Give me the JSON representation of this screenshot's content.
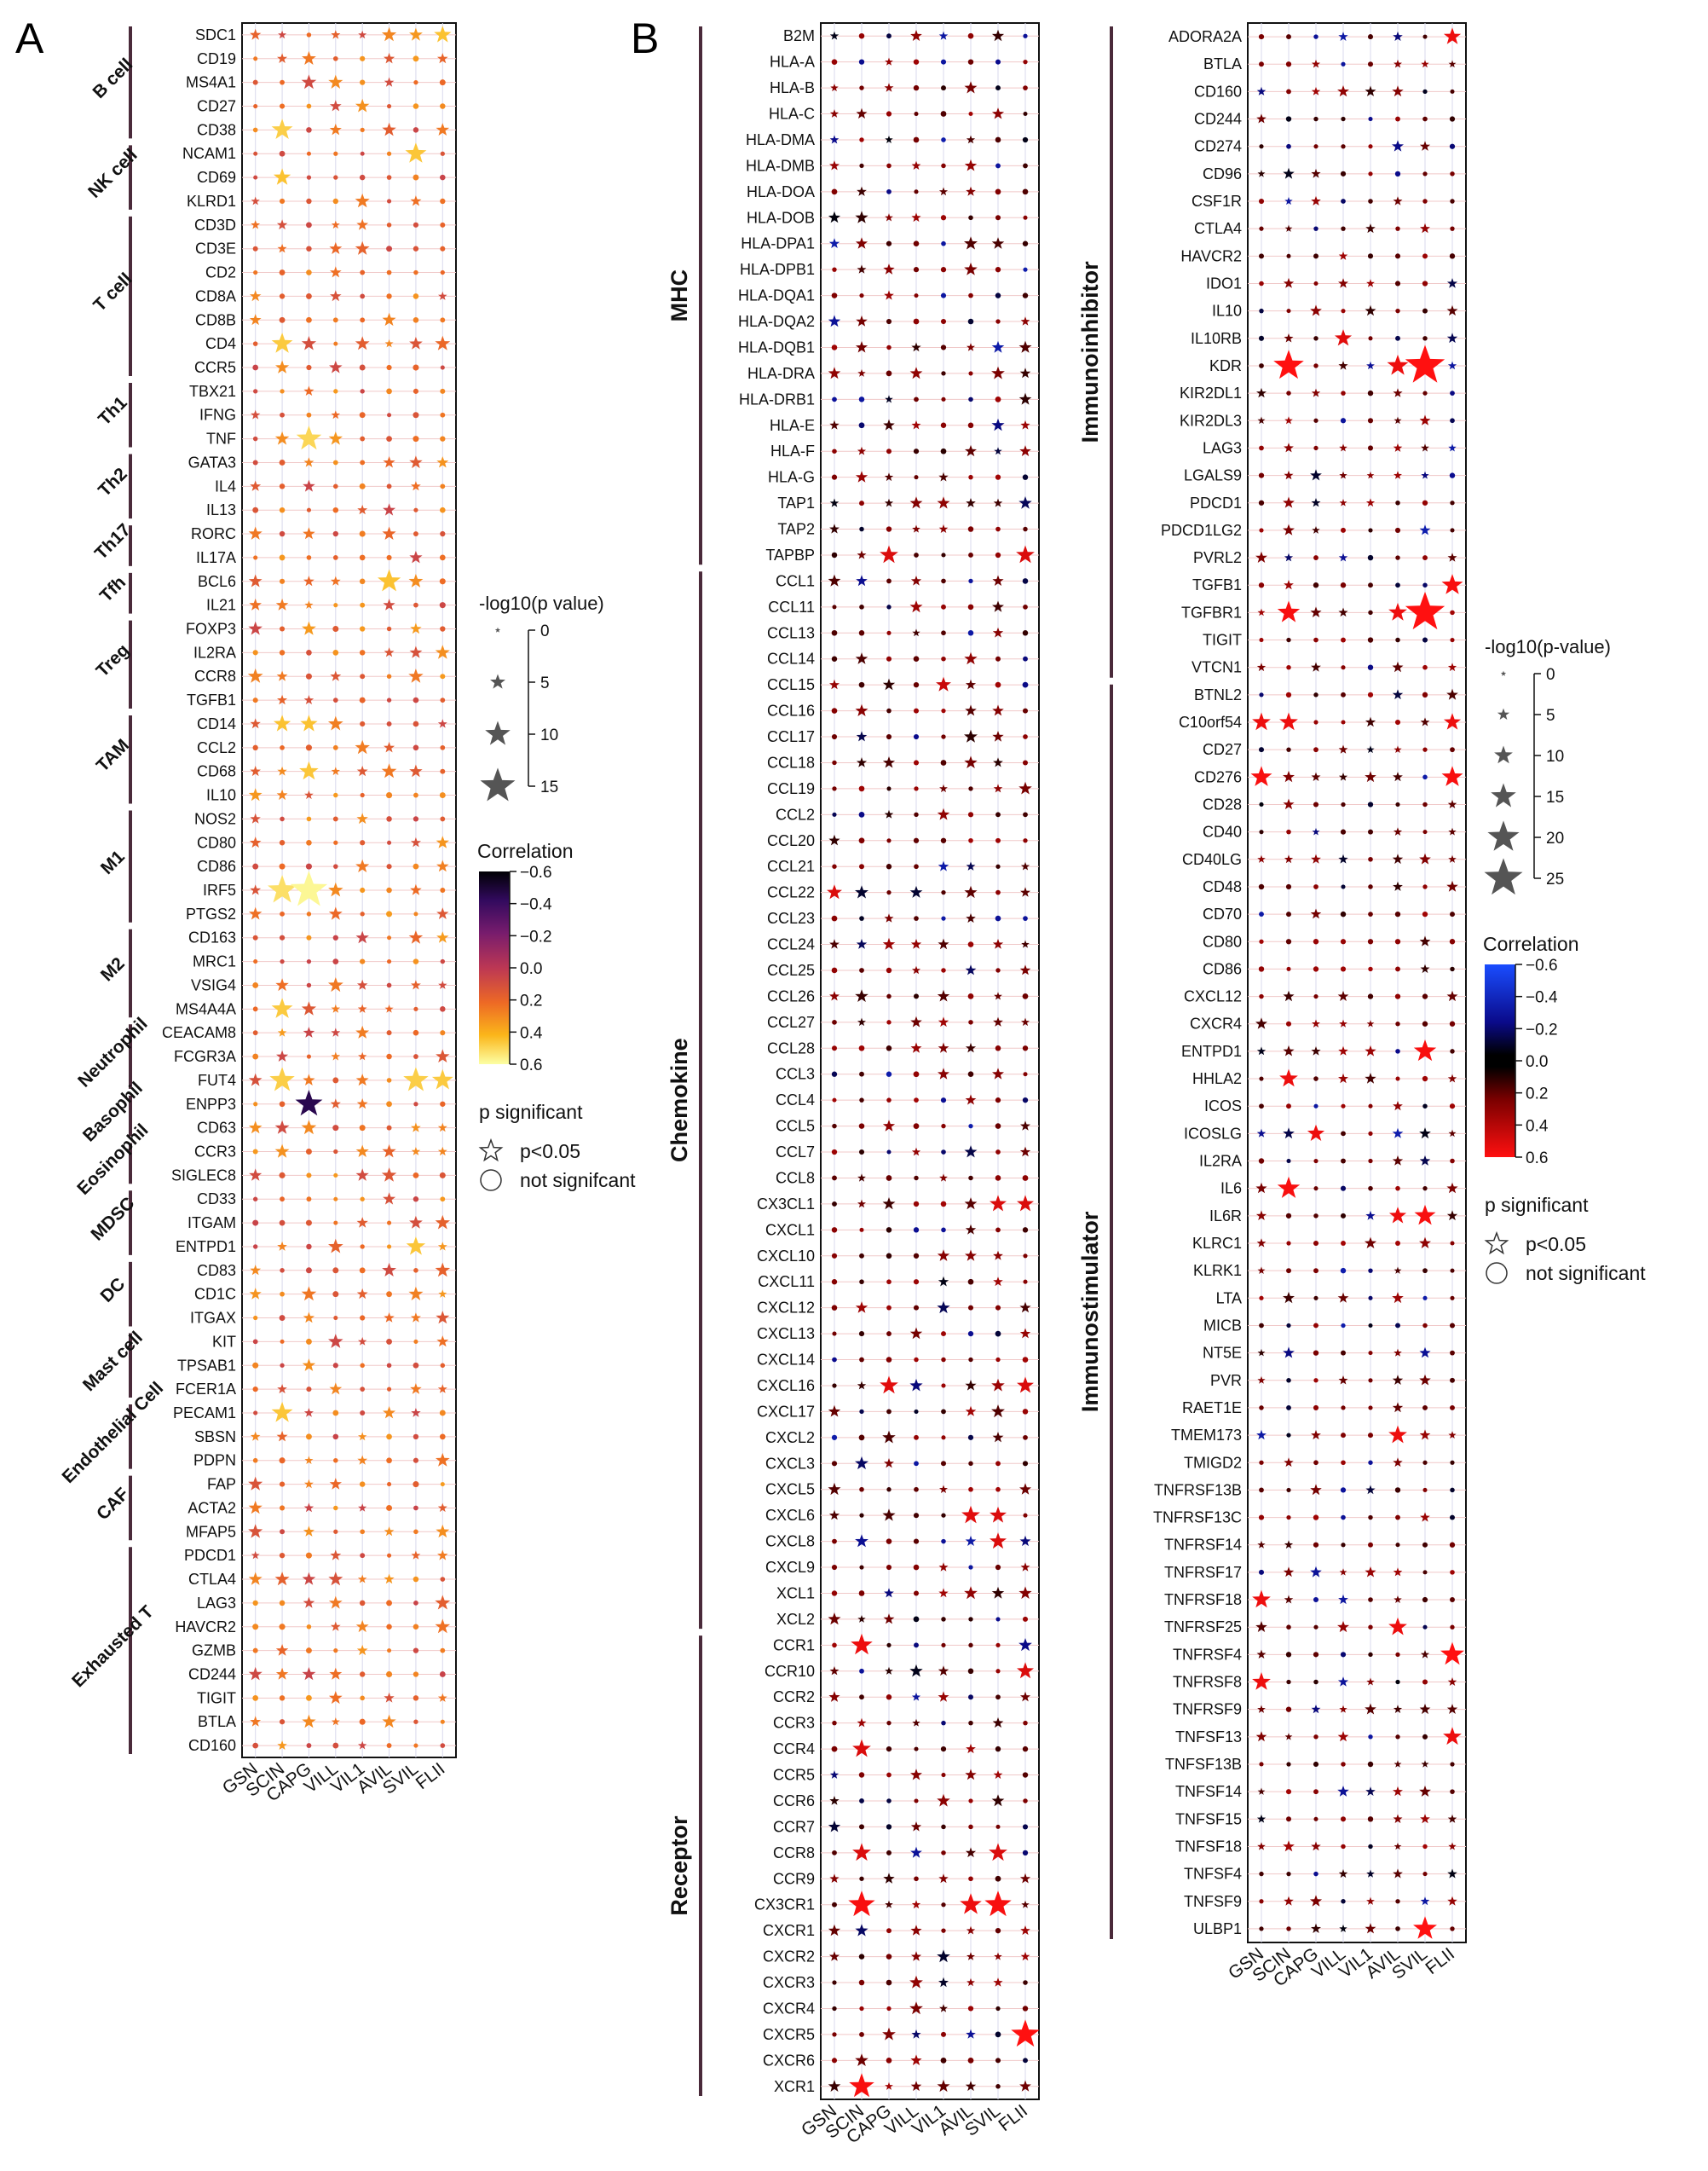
{
  "figure": {
    "panel_labels": [
      "A",
      "B"
    ],
    "colors": {
      "bracket": "#4a2a3a",
      "grid_h": "#f0c8c8",
      "grid_v": "#d8d8ec",
      "legend_symbol": "#555555"
    }
  },
  "chart_data": [
    {
      "id": "A",
      "type": "dot-heatmap",
      "panel_label": "A",
      "x": [
        "GSN",
        "SCIN",
        "CAPG",
        "VILL",
        "VIL1",
        "AVIL",
        "SVIL",
        "FLII"
      ],
      "rows": [
        "SDC1",
        "CD19",
        "MS4A1",
        "CD27",
        "CD38",
        "NCAM1",
        "CD69",
        "KLRD1",
        "CD3D",
        "CD3E",
        "CD2",
        "CD8A",
        "CD8B",
        "CD4",
        "CCR5",
        "TBX21",
        "IFNG",
        "TNF",
        "GATA3",
        "IL4",
        "IL13",
        "RORC",
        "IL17A",
        "BCL6",
        "IL21",
        "FOXP3",
        "IL2RA",
        "CCR8",
        "TGFB1",
        "CD14",
        "CCL2",
        "CD68",
        "IL10",
        "NOS2",
        "CD80",
        "CD86",
        "IRF5",
        "PTGS2",
        "CD163",
        "MRC1",
        "VSIG4",
        "MS4A4A",
        "CEACAM8",
        "FCGR3A",
        "FUT4",
        "ENPP3",
        "CD63",
        "CCR3",
        "SIGLEC8",
        "CD33",
        "ITGAM",
        "ENTPD1",
        "CD83",
        "CD1C",
        "ITGAX",
        "KIT",
        "TPSAB1",
        "FCER1A",
        "PECAM1",
        "SBSN",
        "PDPN",
        "FAP",
        "ACTA2",
        "MFAP5",
        "PDCD1",
        "CTLA4",
        "LAG3",
        "HAVCR2",
        "GZMB",
        "CD244",
        "TIGIT",
        "BTLA",
        "CD160"
      ],
      "groups": [
        {
          "label": "B cell",
          "start": 0,
          "end": 4
        },
        {
          "label": "NK cell",
          "start": 5,
          "end": 7
        },
        {
          "label": "T cell",
          "start": 8,
          "end": 14
        },
        {
          "label": "Th1",
          "start": 15,
          "end": 17
        },
        {
          "label": "Th2",
          "start": 18,
          "end": 20
        },
        {
          "label": "Th17",
          "start": 21,
          "end": 22
        },
        {
          "label": "Tfh",
          "start": 23,
          "end": 24
        },
        {
          "label": "Treg",
          "start": 25,
          "end": 28
        },
        {
          "label": "TAM",
          "start": 29,
          "end": 32
        },
        {
          "label": "M1",
          "start": 33,
          "end": 37
        },
        {
          "label": "M2",
          "start": 38,
          "end": 41
        },
        {
          "label": "Neutrophil",
          "start": 42,
          "end": 44
        },
        {
          "label": "Basophil",
          "start": 45,
          "end": 46
        },
        {
          "label": "Eosinophil",
          "start": 47,
          "end": 48
        },
        {
          "label": "MDSC",
          "start": 49,
          "end": 51
        },
        {
          "label": "DC",
          "start": 52,
          "end": 54
        },
        {
          "label": "Mast cell",
          "start": 55,
          "end": 57
        },
        {
          "label": "Endothelial Cell",
          "start": 58,
          "end": 60
        },
        {
          "label": "CAF",
          "start": 61,
          "end": 63
        },
        {
          "label": "Exhausted T",
          "start": 64,
          "end": 72
        }
      ],
      "highlights": [
        {
          "row": "SDC1",
          "col": "FLII",
          "sig": true,
          "p": 6,
          "corr": 0.45
        },
        {
          "row": "CD38",
          "col": "SCIN",
          "sig": true,
          "p": 8,
          "corr": 0.48
        },
        {
          "row": "NCAM1",
          "col": "SVIL",
          "sig": true,
          "p": 8,
          "corr": 0.46
        },
        {
          "row": "CD69",
          "col": "SCIN",
          "sig": true,
          "p": 6,
          "corr": 0.45
        },
        {
          "row": "CD4",
          "col": "SCIN",
          "sig": true,
          "p": 8,
          "corr": 0.47
        },
        {
          "row": "TNF",
          "col": "CAPG",
          "sig": true,
          "p": 10,
          "corr": 0.5
        },
        {
          "row": "BCL6",
          "col": "AVIL",
          "sig": true,
          "p": 9,
          "corr": 0.45
        },
        {
          "row": "CD14",
          "col": "SCIN",
          "sig": true,
          "p": 6,
          "corr": 0.45
        },
        {
          "row": "CD14",
          "col": "CAPG",
          "sig": true,
          "p": 6,
          "corr": 0.45
        },
        {
          "row": "CD68",
          "col": "CAPG",
          "sig": true,
          "p": 7,
          "corr": 0.46
        },
        {
          "row": "IRF5",
          "col": "SCIN",
          "sig": true,
          "p": 12,
          "corr": 0.52
        },
        {
          "row": "IRF5",
          "col": "CAPG",
          "sig": true,
          "p": 16,
          "corr": 0.58
        },
        {
          "row": "MS4A4A",
          "col": "SCIN",
          "sig": true,
          "p": 8,
          "corr": 0.47
        },
        {
          "row": "FUT4",
          "col": "SCIN",
          "sig": true,
          "p": 10,
          "corr": 0.48
        },
        {
          "row": "FUT4",
          "col": "SVIL",
          "sig": true,
          "p": 10,
          "corr": 0.48
        },
        {
          "row": "FUT4",
          "col": "FLII",
          "sig": true,
          "p": 8,
          "corr": 0.47
        },
        {
          "row": "ENPP3",
          "col": "CAPG",
          "sig": true,
          "p": 11,
          "corr": -0.45
        },
        {
          "row": "ENTPD1",
          "col": "SVIL",
          "sig": true,
          "p": 7,
          "corr": 0.46
        },
        {
          "row": "PECAM1",
          "col": "SCIN",
          "sig": true,
          "p": 8,
          "corr": 0.46
        }
      ],
      "size_legend": {
        "title": "-log10(p value)",
        "ticks": [
          "0",
          "5",
          "10",
          "15"
        ],
        "values": [
          0,
          5,
          10,
          15
        ]
      },
      "color_legend": {
        "title": "Correlation",
        "ticks": [
          "−0.6",
          "−0.4",
          "−0.2",
          "0.0",
          "0.2",
          "0.4",
          "0.6"
        ],
        "values": [
          -0.6,
          -0.4,
          -0.2,
          0.0,
          0.2,
          0.4,
          0.6
        ],
        "colormap": "inferno"
      },
      "shape_legend": {
        "title": "p significant",
        "items": [
          "p<0.05",
          "not signifcant"
        ]
      }
    },
    {
      "id": "B1",
      "type": "dot-heatmap",
      "panel_label": "B",
      "x": [
        "GSN",
        "SCIN",
        "CAPG",
        "VILL",
        "VIL1",
        "AVIL",
        "SVIL",
        "FLII"
      ],
      "rows": [
        "B2M",
        "HLA-A",
        "HLA-B",
        "HLA-C",
        "HLA-DMA",
        "HLA-DMB",
        "HLA-DOA",
        "HLA-DOB",
        "HLA-DPA1",
        "HLA-DPB1",
        "HLA-DQA1",
        "HLA-DQA2",
        "HLA-DQB1",
        "HLA-DRA",
        "HLA-DRB1",
        "HLA-E",
        "HLA-F",
        "HLA-G",
        "TAP1",
        "TAP2",
        "TAPBP",
        "CCL1",
        "CCL11",
        "CCL13",
        "CCL14",
        "CCL15",
        "CCL16",
        "CCL17",
        "CCL18",
        "CCL19",
        "CCL2",
        "CCL20",
        "CCL21",
        "CCL22",
        "CCL23",
        "CCL24",
        "CCL25",
        "CCL26",
        "CCL27",
        "CCL28",
        "CCL3",
        "CCL4",
        "CCL5",
        "CCL7",
        "CCL8",
        "CX3CL1",
        "CXCL1",
        "CXCL10",
        "CXCL11",
        "CXCL12",
        "CXCL13",
        "CXCL14",
        "CXCL16",
        "CXCL17",
        "CXCL2",
        "CXCL3",
        "CXCL5",
        "CXCL6",
        "CXCL8",
        "CXCL9",
        "XCL1",
        "XCL2",
        "CCR1",
        "CCR10",
        "CCR2",
        "CCR3",
        "CCR4",
        "CCR5",
        "CCR6",
        "CCR7",
        "CCR8",
        "CCR9",
        "CX3CR1",
        "CXCR1",
        "CXCR2",
        "CXCR3",
        "CXCR4",
        "CXCR5",
        "CXCR6",
        "XCR1"
      ],
      "groups": [
        {
          "label": "MHC",
          "start": 0,
          "end": 20
        },
        {
          "label": "Chemokine",
          "start": 21,
          "end": 61
        },
        {
          "label": "Receptor",
          "start": 62,
          "end": 79
        }
      ],
      "highlights": [
        {
          "row": "TAPBP",
          "col": "CAPG",
          "sig": true,
          "p": 8,
          "corr": 0.5
        },
        {
          "row": "TAPBP",
          "col": "FLII",
          "sig": true,
          "p": 8,
          "corr": 0.5
        },
        {
          "row": "CCL15",
          "col": "VIL1",
          "sig": true,
          "p": 6,
          "corr": 0.45
        },
        {
          "row": "CCL22",
          "col": "GSN",
          "sig": true,
          "p": 6,
          "corr": 0.5
        },
        {
          "row": "CX3CL1",
          "col": "SVIL",
          "sig": true,
          "p": 7,
          "corr": 0.5
        },
        {
          "row": "CX3CL1",
          "col": "FLII",
          "sig": true,
          "p": 7,
          "corr": 0.5
        },
        {
          "row": "CXCL16",
          "col": "CAPG",
          "sig": true,
          "p": 8,
          "corr": 0.52
        },
        {
          "row": "CXCL16",
          "col": "FLII",
          "sig": true,
          "p": 7,
          "corr": 0.5
        },
        {
          "row": "CXCL6",
          "col": "AVIL",
          "sig": true,
          "p": 8,
          "corr": 0.52
        },
        {
          "row": "CXCL6",
          "col": "SVIL",
          "sig": true,
          "p": 7,
          "corr": 0.5
        },
        {
          "row": "CXCL8",
          "col": "SVIL",
          "sig": true,
          "p": 7,
          "corr": 0.5
        },
        {
          "row": "CCR1",
          "col": "SCIN",
          "sig": true,
          "p": 10,
          "corr": 0.55
        },
        {
          "row": "CCR10",
          "col": "FLII",
          "sig": true,
          "p": 7,
          "corr": 0.5
        },
        {
          "row": "CCR4",
          "col": "SCIN",
          "sig": true,
          "p": 8,
          "corr": 0.5
        },
        {
          "row": "CCR8",
          "col": "SCIN",
          "sig": true,
          "p": 8,
          "corr": 0.5
        },
        {
          "row": "CCR8",
          "col": "SVIL",
          "sig": true,
          "p": 8,
          "corr": 0.5
        },
        {
          "row": "CX3CR1",
          "col": "SCIN",
          "sig": true,
          "p": 13,
          "corr": 0.58
        },
        {
          "row": "CX3CR1",
          "col": "AVIL",
          "sig": true,
          "p": 10,
          "corr": 0.55
        },
        {
          "row": "CX3CR1",
          "col": "SVIL",
          "sig": true,
          "p": 13,
          "corr": 0.58
        },
        {
          "row": "CXCR5",
          "col": "FLII",
          "sig": true,
          "p": 14,
          "corr": 0.6
        },
        {
          "row": "XCR1",
          "col": "SCIN",
          "sig": true,
          "p": 12,
          "corr": 0.58
        }
      ]
    },
    {
      "id": "B2",
      "type": "dot-heatmap",
      "x": [
        "GSN",
        "SCIN",
        "CAPG",
        "VILL",
        "VIL1",
        "AVIL",
        "SVIL",
        "FLII"
      ],
      "rows": [
        "ADORA2A",
        "BTLA",
        "CD160",
        "CD244",
        "CD274",
        "CD96",
        "CSF1R",
        "CTLA4",
        "HAVCR2",
        "IDO1",
        "IL10",
        "IL10RB",
        "KDR",
        "KIR2DL1",
        "KIR2DL3",
        "LAG3",
        "LGALS9",
        "PDCD1",
        "PDCD1LG2",
        "PVRL2",
        "TGFB1",
        "TGFBR1",
        "TIGIT",
        "VTCN1",
        "BTNL2",
        "C10orf54",
        "CD27",
        "CD276",
        "CD28",
        "CD40",
        "CD40LG",
        "CD48",
        "CD70",
        "CD80",
        "CD86",
        "CXCL12",
        "CXCR4",
        "ENTPD1",
        "HHLA2",
        "ICOS",
        "ICOSLG",
        "IL2RA",
        "IL6",
        "IL6R",
        "KLRC1",
        "KLRK1",
        "LTA",
        "MICB",
        "NT5E",
        "PVR",
        "RAET1E",
        "TMEM173",
        "TMIGD2",
        "TNFRSF13B",
        "TNFRSF13C",
        "TNFRSF14",
        "TNFRSF17",
        "TNFRSF18",
        "TNFRSF25",
        "TNFRSF4",
        "TNFRSF8",
        "TNFRSF9",
        "TNFSF13",
        "TNFSF13B",
        "TNFSF14",
        "TNFSF15",
        "TNFSF18",
        "TNFSF4",
        "TNFSF9",
        "ULBP1"
      ],
      "groups": [
        {
          "label": "Immunoinhibitor",
          "start": 0,
          "end": 23
        },
        {
          "label": "Immunostimulator",
          "start": 24,
          "end": 69
        }
      ],
      "highlights": [
        {
          "row": "ADORA2A",
          "col": "FLII",
          "sig": true,
          "p": 9,
          "corr": 0.55
        },
        {
          "row": "IL10RB",
          "col": "VILL",
          "sig": true,
          "p": 9,
          "corr": 0.52
        },
        {
          "row": "KDR",
          "col": "SCIN",
          "sig": true,
          "p": 19,
          "corr": 0.6
        },
        {
          "row": "KDR",
          "col": "AVIL",
          "sig": true,
          "p": 12,
          "corr": 0.55
        },
        {
          "row": "KDR",
          "col": "SVIL",
          "sig": true,
          "p": 26,
          "corr": 0.6
        },
        {
          "row": "TGFB1",
          "col": "FLII",
          "sig": true,
          "p": 12,
          "corr": 0.58
        },
        {
          "row": "TGFBR1",
          "col": "SCIN",
          "sig": true,
          "p": 13,
          "corr": 0.58
        },
        {
          "row": "TGFBR1",
          "col": "AVIL",
          "sig": true,
          "p": 10,
          "corr": 0.55
        },
        {
          "row": "TGFBR1",
          "col": "SVIL",
          "sig": true,
          "p": 26,
          "corr": 0.6
        },
        {
          "row": "C10orf54",
          "col": "GSN",
          "sig": true,
          "p": 10,
          "corr": 0.55
        },
        {
          "row": "C10orf54",
          "col": "SCIN",
          "sig": true,
          "p": 10,
          "corr": 0.55
        },
        {
          "row": "C10orf54",
          "col": "FLII",
          "sig": true,
          "p": 9,
          "corr": 0.55
        },
        {
          "row": "CD276",
          "col": "GSN",
          "sig": true,
          "p": 12,
          "corr": 0.58
        },
        {
          "row": "CD276",
          "col": "FLII",
          "sig": true,
          "p": 12,
          "corr": 0.58
        },
        {
          "row": "ENTPD1",
          "col": "SVIL",
          "sig": true,
          "p": 13,
          "corr": 0.58
        },
        {
          "row": "HHLA2",
          "col": "SCIN",
          "sig": true,
          "p": 10,
          "corr": 0.55
        },
        {
          "row": "ICOSLG",
          "col": "CAPG",
          "sig": true,
          "p": 9,
          "corr": 0.55
        },
        {
          "row": "IL6",
          "col": "SCIN",
          "sig": true,
          "p": 13,
          "corr": 0.58
        },
        {
          "row": "IL6R",
          "col": "AVIL",
          "sig": true,
          "p": 9,
          "corr": 0.55
        },
        {
          "row": "IL6R",
          "col": "SVIL",
          "sig": true,
          "p": 12,
          "corr": 0.58
        },
        {
          "row": "TMEM173",
          "col": "AVIL",
          "sig": true,
          "p": 10,
          "corr": 0.55
        },
        {
          "row": "TNFRSF18",
          "col": "GSN",
          "sig": true,
          "p": 10,
          "corr": 0.55
        },
        {
          "row": "TNFRSF25",
          "col": "AVIL",
          "sig": true,
          "p": 10,
          "corr": 0.55
        },
        {
          "row": "TNFRSF4",
          "col": "FLII",
          "sig": true,
          "p": 14,
          "corr": 0.6
        },
        {
          "row": "TNFRSF8",
          "col": "GSN",
          "sig": true,
          "p": 10,
          "corr": 0.55
        },
        {
          "row": "TNFSF13",
          "col": "FLII",
          "sig": true,
          "p": 10,
          "corr": 0.55
        },
        {
          "row": "ULBP1",
          "col": "SVIL",
          "sig": true,
          "p": 14,
          "corr": 0.6
        }
      ],
      "size_legend": {
        "title": "-log10(p-value)",
        "ticks": [
          "0",
          "5",
          "10",
          "15",
          "20",
          "25"
        ],
        "values": [
          0,
          5,
          10,
          15,
          20,
          25
        ]
      },
      "color_legend": {
        "title": "Correlation",
        "ticks": [
          "−0.6",
          "−0.4",
          "−0.2",
          "0.0",
          "0.2",
          "0.4",
          "0.6"
        ],
        "values": [
          -0.6,
          -0.4,
          -0.2,
          0.0,
          0.2,
          0.4,
          0.6
        ],
        "colormap": "blue-black-red"
      },
      "shape_legend": {
        "title": "p significant",
        "items": [
          "p<0.05",
          "not significant"
        ]
      }
    }
  ]
}
